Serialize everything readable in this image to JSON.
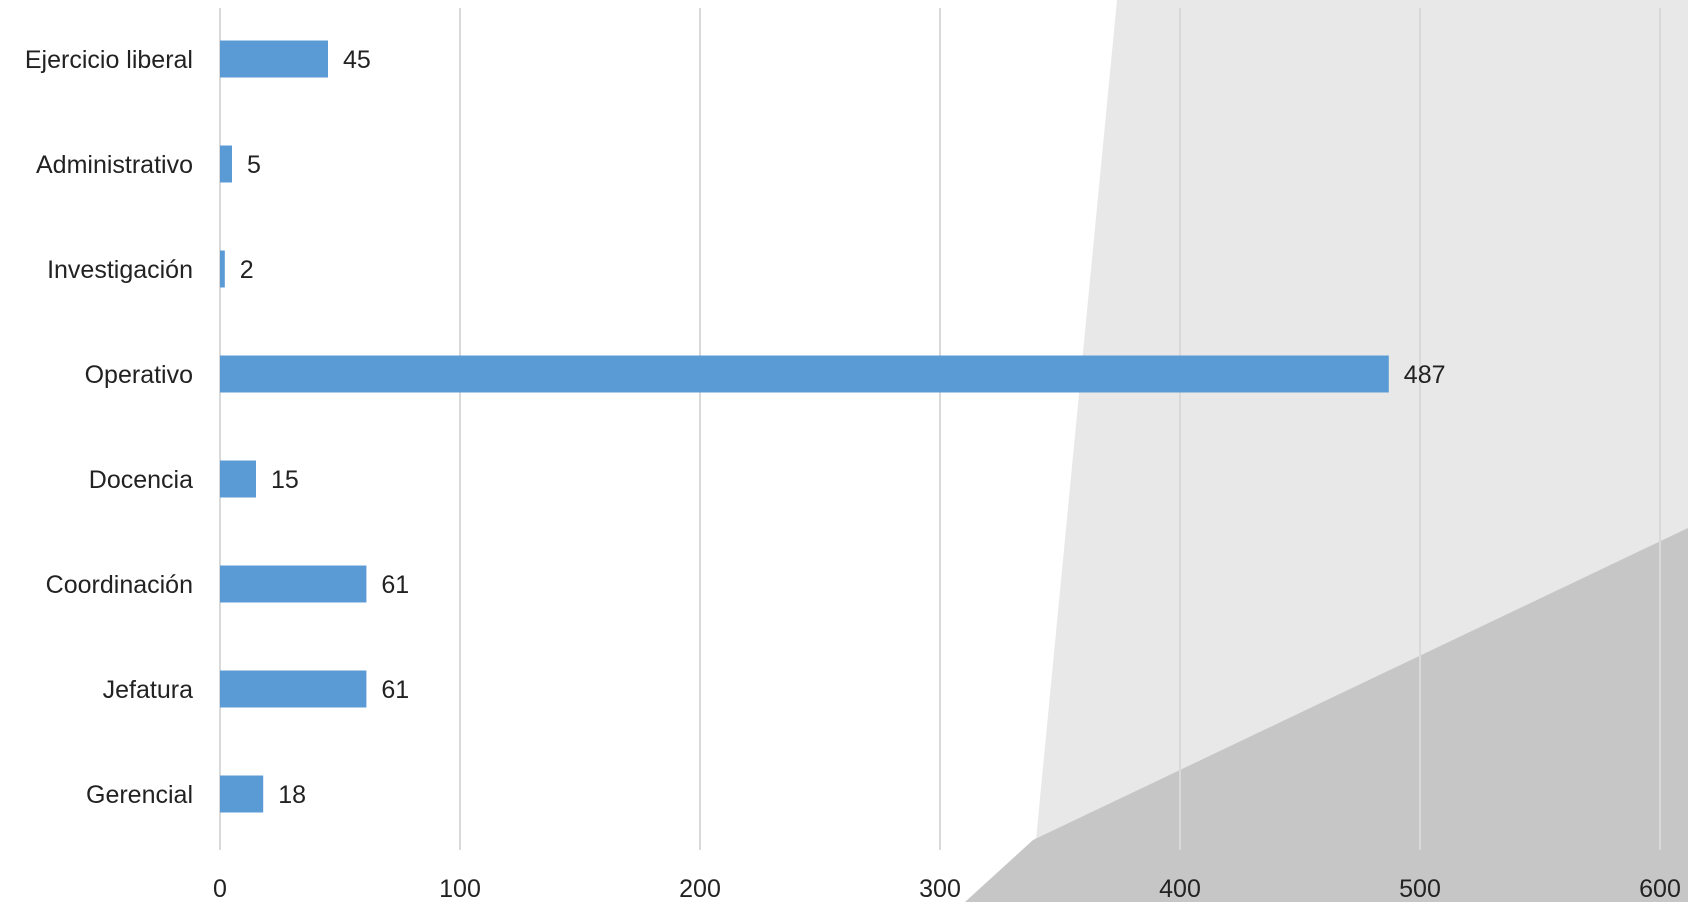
{
  "chart_data": {
    "type": "bar",
    "orientation": "horizontal",
    "categories": [
      "Ejercicio liberal",
      "Administrativo",
      "Investigación",
      "Operativo",
      "Docencia",
      "Coordinación",
      "Jefatura",
      "Gerencial"
    ],
    "values": [
      45,
      5,
      2,
      487,
      15,
      61,
      61,
      18
    ],
    "data_labels": [
      "45",
      "5",
      "2",
      "487",
      "15",
      "61",
      "61",
      "18"
    ],
    "xlim": [
      0,
      600
    ],
    "x_ticks": [
      "0",
      "100",
      "200",
      "300",
      "400",
      "500",
      "600"
    ],
    "grid": "vertical",
    "legend": "none",
    "colors": {
      "bar": "#5b9bd5",
      "grid": "#d9d9d9",
      "background_light": "#e8e8e8",
      "background_dark": "#c6c6c6"
    }
  }
}
